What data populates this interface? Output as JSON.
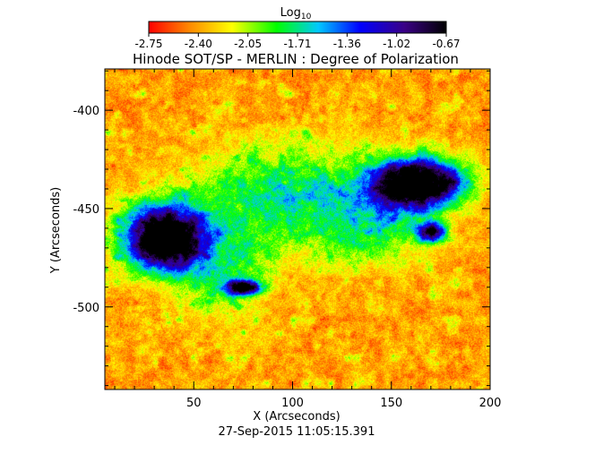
{
  "chart_data": {
    "type": "heatmap",
    "title": "Hinode SOT/SP - MERLIN : Degree of Polarization",
    "xlabel": "X (Arcseconds)",
    "ylabel": "Y (Arcseconds)",
    "timestamp": "27-Sep-2015 11:05:15.391",
    "xlim": [
      5,
      200
    ],
    "ylim": [
      -542,
      -379
    ],
    "x_ticks": [
      50,
      100,
      150,
      200
    ],
    "y_ticks": [
      -400,
      -450,
      -500
    ],
    "colorbar": {
      "title": "Log",
      "title_sub": "10",
      "range": [
        -2.75,
        -0.67
      ],
      "tick_labels": [
        "-2.75",
        "-2.40",
        "-2.05",
        "-1.71",
        "-1.36",
        "-1.02",
        "-0.67"
      ],
      "colormap": [
        "#ff0000",
        "#ff8c00",
        "#ffff00",
        "#00ff00",
        "#00c8ff",
        "#0000ff",
        "#3a0085",
        "#000000"
      ]
    },
    "background_level": -2.6,
    "features": [
      {
        "name": "left-sunspot",
        "x": 35,
        "y": -465,
        "level": -0.67
      },
      {
        "name": "right-sunspot",
        "x": 163,
        "y": -437,
        "level": -0.67
      },
      {
        "name": "central-pore",
        "x": 75,
        "y": -490,
        "level": -0.9
      },
      {
        "name": "right-pore",
        "x": 170,
        "y": -462,
        "level": -0.9
      }
    ]
  }
}
